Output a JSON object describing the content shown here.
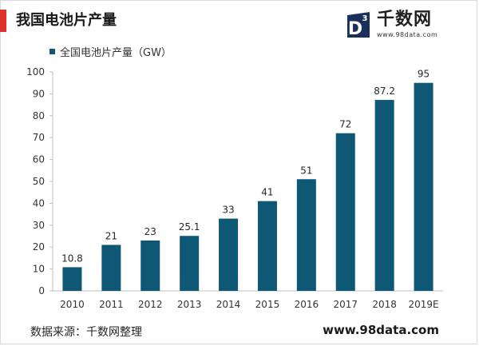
{
  "header": {
    "title": "我国电池片产量",
    "accent_color": "#e0312d"
  },
  "logo": {
    "badge_letter": "D",
    "badge_superscript": "3",
    "name": "千数网",
    "url": "www.98data.com"
  },
  "chart_data": {
    "type": "bar",
    "categories": [
      "2010",
      "2011",
      "2012",
      "2013",
      "2014",
      "2015",
      "2016",
      "2017",
      "2018",
      "2019E"
    ],
    "series": [
      {
        "name": "全国电池片产量（GW）",
        "values": [
          10.8,
          21,
          23,
          25.1,
          33,
          41,
          51,
          72,
          87.2,
          95
        ],
        "labels": [
          "10.8",
          "21",
          "23",
          "25.1",
          "33",
          "41",
          "51",
          "72",
          "87.2",
          "95"
        ],
        "color": "#0e5775"
      }
    ],
    "yticks": [
      "0",
      "10",
      "20",
      "30",
      "40",
      "50",
      "60",
      "70",
      "80",
      "90",
      "100"
    ],
    "ylim": [
      0,
      100
    ],
    "grid": false,
    "legend": "top-left"
  },
  "footer": {
    "source": "数据来源：千数网整理",
    "url": "www.98data.com"
  }
}
